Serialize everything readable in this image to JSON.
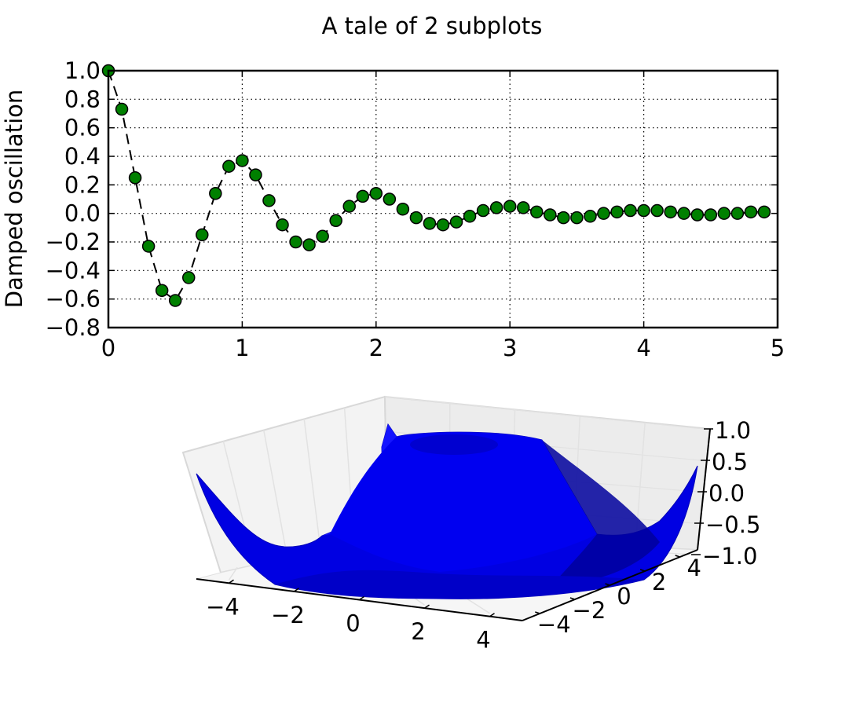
{
  "figure": {
    "title": "A tale of 2 subplots",
    "marker_color": "#008000",
    "line_color": "#000000",
    "surface_color": "#0000ff"
  },
  "chart_data": [
    {
      "type": "line",
      "title": "",
      "xlabel": "",
      "ylabel": "Damped oscillation",
      "xlim": [
        0,
        5
      ],
      "ylim": [
        -0.8,
        1.0
      ],
      "grid": true,
      "line_style": "dashed",
      "marker": "circle",
      "x_ticks": [
        "0",
        "1",
        "2",
        "3",
        "4",
        "5"
      ],
      "y_ticks": [
        "1.0",
        "0.8",
        "0.6",
        "0.4",
        "0.2",
        "0.0",
        "−0.2",
        "−0.4",
        "−0.6",
        "−0.8"
      ],
      "x": [
        0.0,
        0.1,
        0.2,
        0.3,
        0.4,
        0.5,
        0.6,
        0.7,
        0.8,
        0.9,
        1.0,
        1.1,
        1.2,
        1.3,
        1.4,
        1.5,
        1.6,
        1.7,
        1.8,
        1.9,
        2.0,
        2.1,
        2.2,
        2.3,
        2.4,
        2.5,
        2.6,
        2.7,
        2.8,
        2.9,
        3.0,
        3.1,
        3.2,
        3.3,
        3.4,
        3.5,
        3.6,
        3.7,
        3.8,
        3.9,
        4.0,
        4.1,
        4.2,
        4.3,
        4.4,
        4.5,
        4.6,
        4.7,
        4.8,
        4.9
      ],
      "y": [
        1.0,
        0.73,
        0.25,
        -0.23,
        -0.54,
        -0.61,
        -0.45,
        -0.15,
        0.14,
        0.33,
        0.37,
        0.27,
        0.09,
        -0.08,
        -0.2,
        -0.22,
        -0.16,
        -0.05,
        0.05,
        0.12,
        0.14,
        0.1,
        0.03,
        -0.03,
        -0.07,
        -0.08,
        -0.06,
        -0.02,
        0.02,
        0.04,
        0.05,
        0.04,
        0.01,
        -0.01,
        -0.03,
        -0.03,
        -0.02,
        0.0,
        0.01,
        0.02,
        0.02,
        0.02,
        0.01,
        0.0,
        -0.01,
        -0.01,
        0.0,
        0.0,
        0.01,
        0.01
      ]
    },
    {
      "type": "surface",
      "title": "",
      "function": "sin(sqrt(x^2 + y^2))",
      "xlim": [
        -5,
        5
      ],
      "ylim": [
        -5,
        5
      ],
      "zlim": [
        -1.0,
        1.0
      ],
      "x_ticks": [
        "−4",
        "−2",
        "0",
        "2",
        "4"
      ],
      "y_ticks": [
        "−4",
        "−2",
        "0",
        "2",
        "4"
      ],
      "z_ticks": [
        "1.0",
        "0.5",
        "0.0",
        "−0.5",
        "−1.0"
      ]
    }
  ]
}
